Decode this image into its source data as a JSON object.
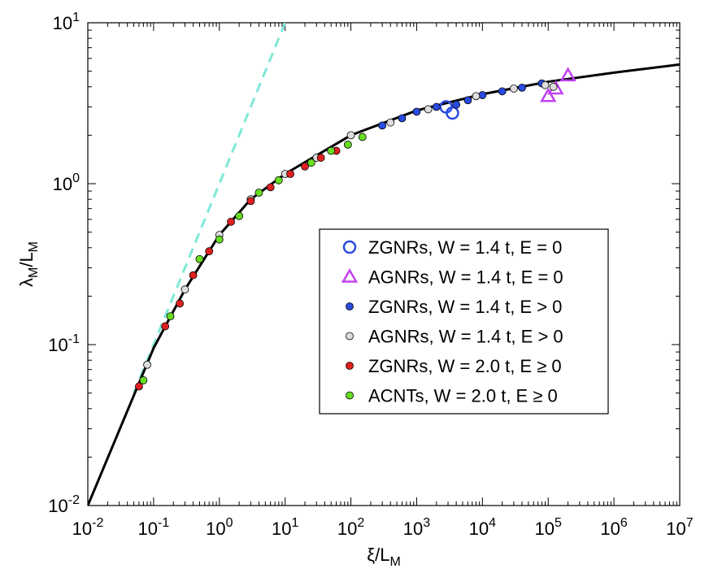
{
  "chart_data": {
    "type": "scatter",
    "xlabel": [
      "ξ",
      "/L",
      "M"
    ],
    "ylabel": [
      "λ",
      "M",
      "/L",
      "M"
    ],
    "xscale": "log",
    "yscale": "log",
    "xlim": [
      0.01,
      10000000
    ],
    "ylim": [
      0.01,
      10
    ],
    "xticks": [
      {
        "value": 0.01,
        "label": "10",
        "exponent": "-2"
      },
      {
        "value": 0.1,
        "label": "10",
        "exponent": "-1"
      },
      {
        "value": 1,
        "label": "10",
        "exponent": "0"
      },
      {
        "value": 10,
        "label": "10",
        "exponent": "1"
      },
      {
        "value": 100,
        "label": "10",
        "exponent": "2"
      },
      {
        "value": 1000,
        "label": "10",
        "exponent": "3"
      },
      {
        "value": 10000,
        "label": "10",
        "exponent": "4"
      },
      {
        "value": 100000,
        "label": "10",
        "exponent": "5"
      },
      {
        "value": 1000000,
        "label": "10",
        "exponent": "6"
      },
      {
        "value": 10000000,
        "label": "10",
        "exponent": "7"
      }
    ],
    "yticks": [
      {
        "value": 0.01,
        "label": "10",
        "exponent": "-2"
      },
      {
        "value": 0.1,
        "label": "10",
        "exponent": "-1"
      },
      {
        "value": 1,
        "label": "10",
        "exponent": "0"
      },
      {
        "value": 10,
        "label": "10",
        "exponent": "1"
      }
    ],
    "legend": "right",
    "series": [
      {
        "kind": "line",
        "style": "dashed",
        "color": "#7fe8d8",
        "x": [
          0.05,
          10
        ],
        "values": [
          0.05,
          10
        ]
      },
      {
        "kind": "line",
        "style": "solid",
        "color": "#000000",
        "x": [
          0.01,
          0.1,
          0.3,
          1,
          3,
          10,
          100,
          1000,
          10000,
          100000,
          1000000,
          10000000
        ],
        "values": [
          0.01,
          0.095,
          0.22,
          0.48,
          0.8,
          1.15,
          2.0,
          2.85,
          3.6,
          4.3,
          4.9,
          5.5
        ]
      },
      {
        "name": "ZGNRs, W = 1.4 t, E = 0",
        "marker": "open-circle",
        "color": "#2a4be0",
        "x": [
          2800,
          3500
        ],
        "values": [
          3.0,
          2.75
        ]
      },
      {
        "name": "AGNRs, W = 1.4 t, E = 0",
        "marker": "triangle",
        "color": "#c040f0",
        "x": [
          100000,
          130000,
          200000
        ],
        "values": [
          3.5,
          3.9,
          4.7
        ]
      },
      {
        "name": "ZGNRs, W = 1.4 t, E > 0",
        "marker": "dot",
        "color": "#2a4be0",
        "x": [
          300,
          600,
          1000,
          2000,
          4000,
          6000,
          10000,
          20000,
          40000,
          80000
        ],
        "values": [
          2.3,
          2.55,
          2.8,
          3.0,
          3.1,
          3.3,
          3.55,
          3.75,
          3.95,
          4.2
        ]
      },
      {
        "name": "AGNRs, W = 1.4 t, E > 0",
        "marker": "dot",
        "color": "#dddddd",
        "x": [
          0.08,
          0.3,
          1,
          3,
          10,
          30,
          100,
          400,
          1500,
          8000,
          30000,
          90000,
          120000
        ],
        "values": [
          0.075,
          0.22,
          0.48,
          0.8,
          1.15,
          1.45,
          2.0,
          2.4,
          2.9,
          3.5,
          3.9,
          4.1,
          4.0
        ]
      },
      {
        "name": "ZGNRs, W = 2.0 t, E ≥ 0",
        "marker": "dot",
        "color": "#e02020",
        "x": [
          0.06,
          0.15,
          0.25,
          0.4,
          0.7,
          1.5,
          3,
          6,
          12,
          20,
          35,
          60
        ],
        "values": [
          0.055,
          0.13,
          0.18,
          0.27,
          0.38,
          0.58,
          0.78,
          0.95,
          1.15,
          1.28,
          1.45,
          1.6
        ]
      },
      {
        "name": "ACNTs, W = 2.0 t, E ≥ 0",
        "marker": "dot",
        "color": "#66dd22",
        "x": [
          0.07,
          0.18,
          0.5,
          1,
          2,
          4,
          8,
          25,
          50,
          90,
          150
        ],
        "values": [
          0.06,
          0.15,
          0.34,
          0.45,
          0.63,
          0.88,
          1.05,
          1.35,
          1.6,
          1.75,
          1.95
        ]
      }
    ]
  }
}
